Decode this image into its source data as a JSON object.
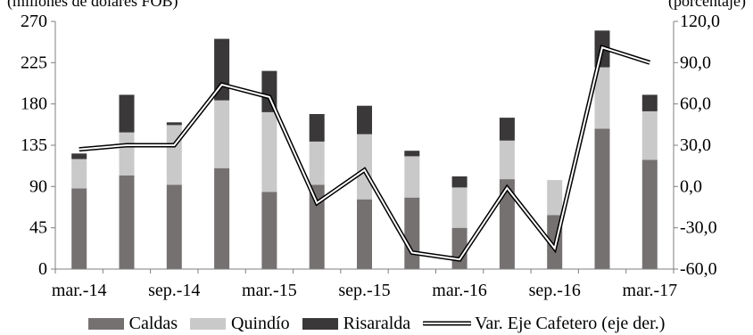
{
  "chart_data": {
    "type": "bar",
    "stacked": true,
    "ylabel": "(millones de dólares FOB)",
    "y2label": "(porcentaje)",
    "ylim": [
      0,
      270
    ],
    "y2lim": [
      -60,
      120
    ],
    "yticks": [
      "0",
      "45",
      "90",
      "135",
      "180",
      "225",
      "270"
    ],
    "y2ticks": [
      "-60,0",
      "-30,0",
      "0,0",
      "30,0",
      "60,0",
      "90,0",
      "120,0"
    ],
    "xticklabels": [
      {
        "index": 0,
        "label": "mar.-14"
      },
      {
        "index": 2,
        "label": "sep.-14"
      },
      {
        "index": 4,
        "label": "mar.-15"
      },
      {
        "index": 6,
        "label": "sep.-15"
      },
      {
        "index": 8,
        "label": "mar.-16"
      },
      {
        "index": 10,
        "label": "sep.-16"
      },
      {
        "index": 12,
        "label": "mar.-17"
      }
    ],
    "categories_count": 13,
    "series": [
      {
        "name": "Caldas",
        "type": "bar",
        "axis": "left",
        "color": "#767171",
        "values": [
          88,
          102,
          92,
          110,
          84,
          92,
          76,
          78,
          45,
          98,
          59,
          153,
          119
        ]
      },
      {
        "name": "Quindío",
        "type": "bar",
        "axis": "left",
        "color": "#c9c9c9",
        "values": [
          32,
          47,
          65,
          74,
          87,
          47,
          71,
          45,
          44,
          42,
          38,
          67,
          53
        ]
      },
      {
        "name": "Risaralda",
        "type": "bar",
        "axis": "left",
        "color": "#3a3838",
        "values": [
          6,
          41,
          3,
          67,
          45,
          30,
          31,
          6,
          12,
          25,
          0,
          40,
          18
        ]
      },
      {
        "name": "Var. Eje Cafetero (eje der.)",
        "type": "line",
        "axis": "right",
        "color": "#000000",
        "values": [
          27,
          30,
          30,
          74,
          65,
          -12,
          12,
          -48,
          -53,
          -1,
          -45,
          101,
          90
        ]
      }
    ],
    "legend_position": "bottom",
    "grid": false
  }
}
